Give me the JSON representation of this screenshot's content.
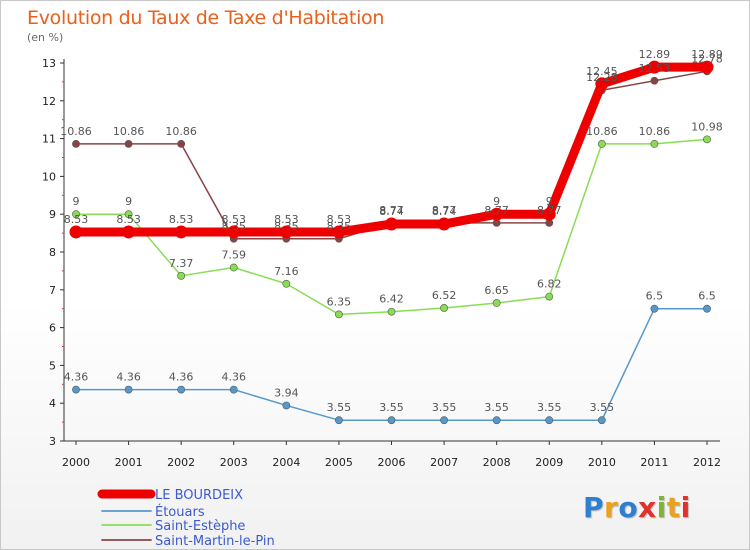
{
  "header": {
    "title": "Evolution du Taux de Taxe d'Habitation",
    "unit": "(en %)"
  },
  "logo": {
    "text": "Proxiti",
    "colors": [
      "#2f7fd0",
      "#e9a21f",
      "#2f7fd0",
      "#e0312c",
      "#7fb532",
      "#e9a21f",
      "#e0312c"
    ]
  },
  "chart_data": {
    "type": "line",
    "title": "Evolution du Taux de Taxe d'Habitation",
    "ylabel": "(en %)",
    "xlabel": "",
    "ylim": [
      3,
      13
    ],
    "yticks": [
      "3",
      "4",
      "5",
      "6",
      "7",
      "8",
      "9",
      "10",
      "11",
      "12",
      "13"
    ],
    "categories": [
      "2000",
      "2001",
      "2002",
      "2003",
      "2004",
      "2005",
      "2006",
      "2007",
      "2008",
      "2009",
      "2010",
      "2011",
      "2012"
    ],
    "grid": false,
    "legend": "bottom-left",
    "series": [
      {
        "name": "LE BOURDEIX",
        "color": "#ee0000",
        "values": [
          8.53,
          8.53,
          8.53,
          8.53,
          8.53,
          8.53,
          8.74,
          8.74,
          9,
          9,
          12.45,
          12.89,
          12.89
        ],
        "labels": [
          "8.53",
          "8.53",
          "8.53",
          "8.53",
          "8.53",
          "8.53",
          "8.74",
          "8.74",
          "9",
          "9",
          "12.45",
          "12.89",
          "12.89"
        ]
      },
      {
        "name": "Étouars",
        "color": "#5599cc",
        "values": [
          4.36,
          4.36,
          4.36,
          4.36,
          3.94,
          3.55,
          3.55,
          3.55,
          3.55,
          3.55,
          3.55,
          6.5,
          6.5
        ],
        "labels": [
          "4.36",
          "4.36",
          "4.36",
          "4.36",
          "3.94",
          "3.55",
          "3.55",
          "3.55",
          "3.55",
          "3.55",
          "3.55",
          "6.5",
          "6.5"
        ]
      },
      {
        "name": "Saint-Estèphe",
        "color": "#88dd55",
        "values": [
          9,
          9,
          7.37,
          7.59,
          7.16,
          6.35,
          6.42,
          6.52,
          6.65,
          6.82,
          10.86,
          10.86,
          10.98
        ],
        "labels": [
          "9",
          "9",
          "7.37",
          "7.59",
          "7.16",
          "6.35",
          "6.42",
          "6.52",
          "6.65",
          "6.82",
          "10.86",
          "10.86",
          "10.98"
        ]
      },
      {
        "name": "Saint-Martin-le-Pin",
        "color": "#884444",
        "values": [
          10.86,
          10.86,
          10.86,
          8.35,
          8.35,
          8.35,
          8.77,
          8.77,
          8.77,
          8.77,
          12.28,
          12.53,
          12.78
        ],
        "labels": [
          "10.86",
          "10.86",
          "10.86",
          "8.35",
          "8.35",
          "8.35",
          "8.77",
          "8.77",
          "8.77",
          "8.77",
          "12.28",
          "12.53",
          "12.78"
        ]
      }
    ]
  }
}
